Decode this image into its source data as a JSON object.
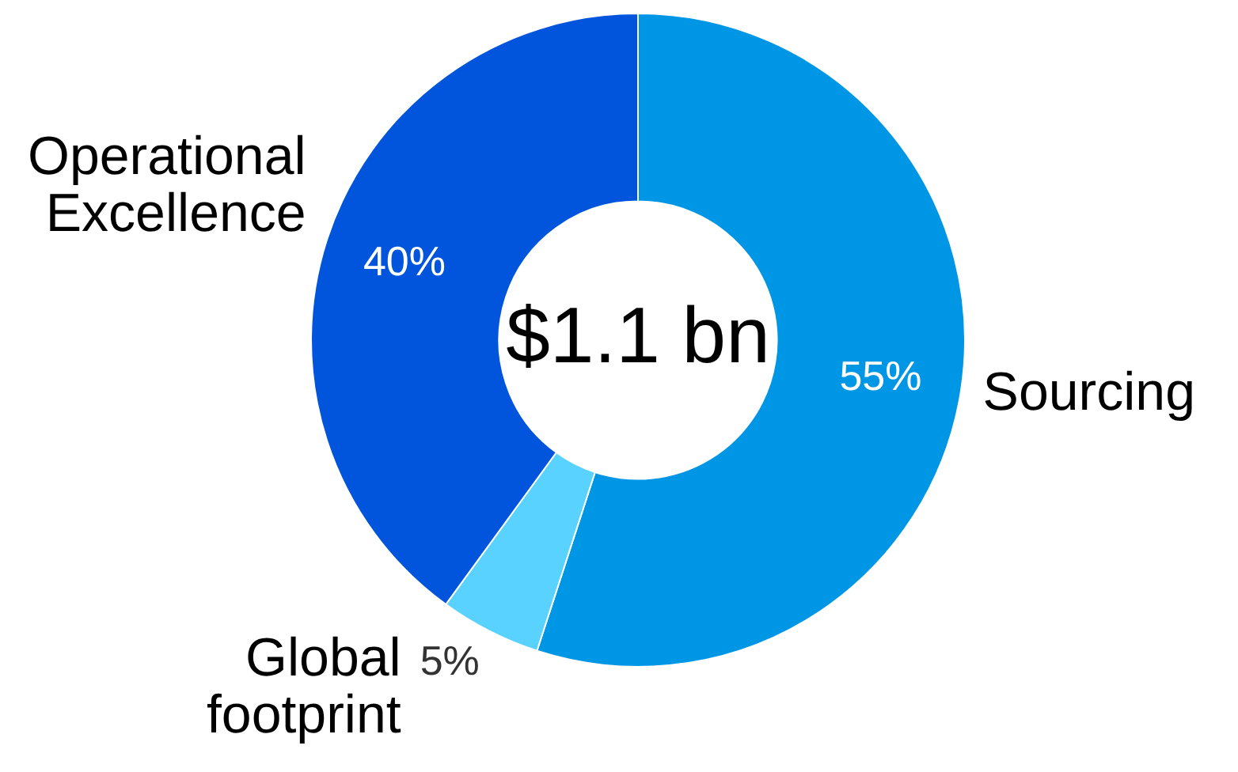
{
  "chart_data": {
    "type": "donut",
    "categories": [
      "Sourcing",
      "Global footprint",
      "Operational Excellence"
    ],
    "values": [
      55,
      5,
      40
    ],
    "colors": [
      "#0096e6",
      "#5ad2ff",
      "#0055dc"
    ],
    "value_labels": [
      "55%",
      "5%",
      "40%"
    ],
    "legend": false,
    "annotations": [
      "$1.1 bn"
    ]
  }
}
